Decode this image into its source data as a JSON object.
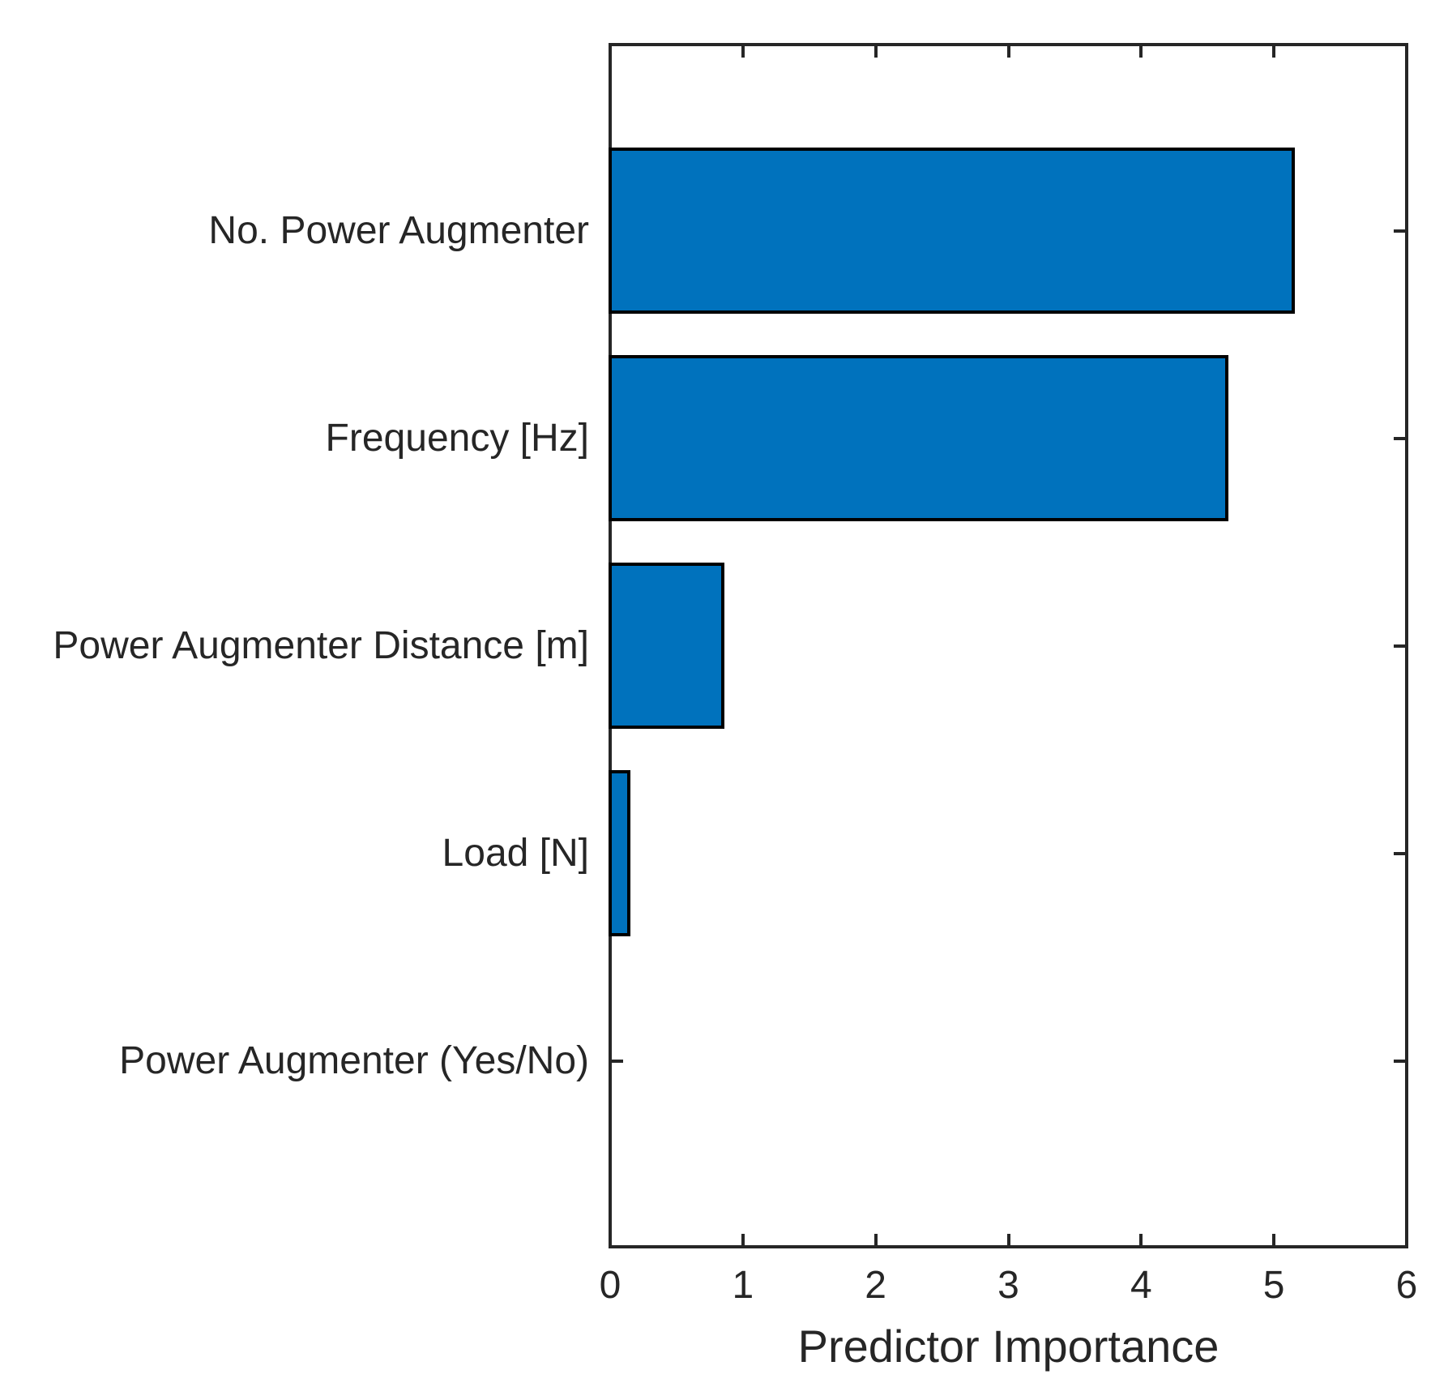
{
  "chart_data": {
    "type": "bar",
    "orientation": "horizontal",
    "title": "",
    "xlabel": "Predictor Importance",
    "ylabel": "",
    "categories": [
      "No. Power Augmenter",
      "Frequency [Hz]",
      "Power Augmenter Distance [m]",
      "Load [N]",
      "Power Augmenter (Yes/No)"
    ],
    "values": [
      5.16,
      4.66,
      0.86,
      0.15,
      0
    ],
    "xlim": [
      0,
      6
    ],
    "xticks": [
      "0",
      "1",
      "2",
      "3",
      "4",
      "5",
      "6"
    ],
    "grid": false,
    "legend": null,
    "box": true,
    "tick_direction": "in",
    "bar_color": "#0072BD",
    "bar_edge_color": "#000000",
    "axis_color": "#262626",
    "background_color": "#ffffff"
  }
}
